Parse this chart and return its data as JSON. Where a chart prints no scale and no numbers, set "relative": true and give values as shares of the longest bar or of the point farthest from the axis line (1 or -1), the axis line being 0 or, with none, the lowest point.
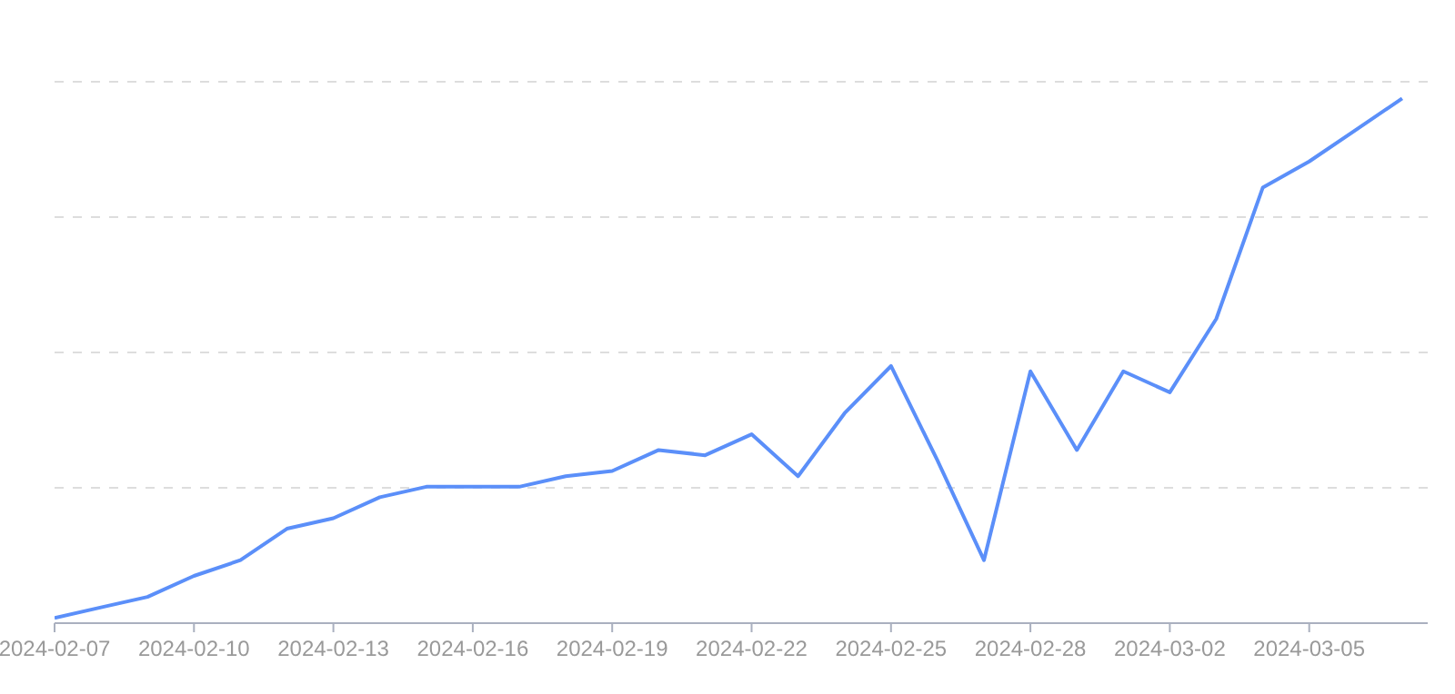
{
  "chart_data": {
    "type": "line",
    "relative": true,
    "grid": "y",
    "categories": [
      "2024-02-07",
      null,
      null,
      "2024-02-10",
      null,
      null,
      "2024-02-13",
      null,
      null,
      "2024-02-16",
      null,
      null,
      "2024-02-19",
      null,
      null,
      "2024-02-22",
      null,
      null,
      "2024-02-25",
      null,
      null,
      "2024-02-28",
      null,
      null,
      "2024-03-02",
      null,
      null,
      "2024-03-05",
      null,
      null
    ],
    "series": [
      {
        "color": "#5b8ff9",
        "values": [
          0.01,
          0.03,
          0.05,
          0.09,
          0.12,
          0.18,
          0.2,
          0.24,
          0.26,
          0.26,
          0.26,
          0.28,
          0.29,
          0.33,
          0.32,
          0.36,
          0.28,
          0.4,
          0.49,
          0.31,
          0.12,
          0.48,
          0.33,
          0.48,
          0.44,
          0.58,
          0.83,
          0.88,
          0.94,
          1
        ]
      }
    ]
  }
}
